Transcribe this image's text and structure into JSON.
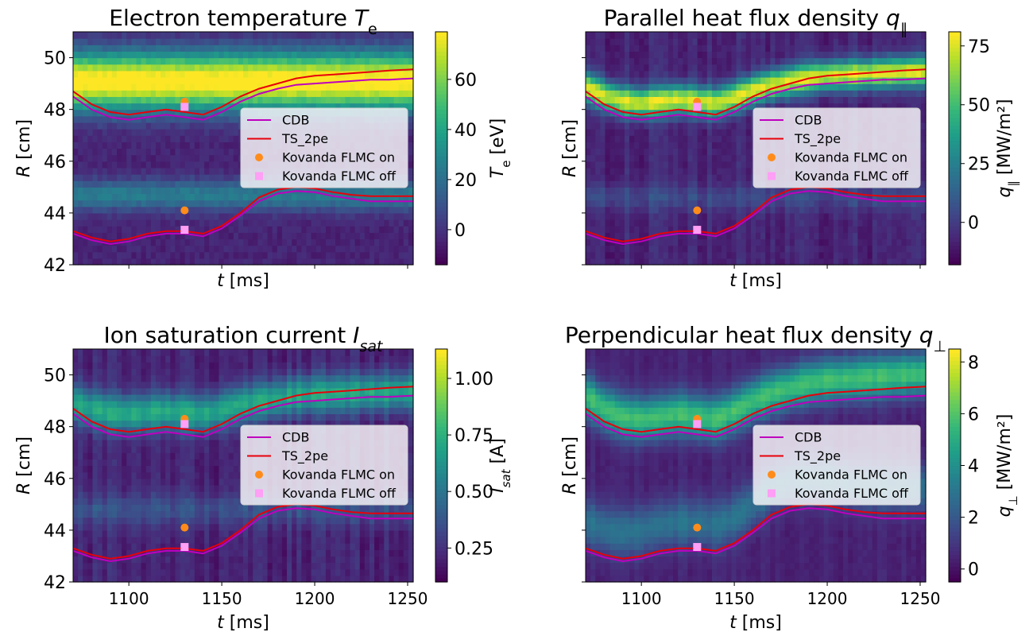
{
  "chart_data": [
    {
      "type": "heatmap",
      "title": "Electron temperature T",
      "title_sub": "e",
      "xlabel": "t",
      "xlabel_unit": "[ms]",
      "ylabel": "R",
      "ylabel_unit": "[cm]",
      "xlim": [
        1070,
        1253
      ],
      "ylim": [
        42,
        51
      ],
      "xticks": [
        1100,
        1150,
        1200,
        1250
      ],
      "xtick_labels": [],
      "yticks": [
        42,
        44,
        46,
        48,
        50
      ],
      "ytick_labels": [
        "42",
        "44",
        "46",
        "48",
        "50"
      ],
      "colorbar": {
        "label": "T",
        "label_sub": "e",
        "label_unit": "[eV]",
        "min": -14,
        "max": 79,
        "ticks": [
          0,
          20,
          40,
          60
        ],
        "tick_labels": [
          "0",
          "20",
          "40",
          "60"
        ]
      },
      "field": {
        "bands": [
          {
            "c": 49.1,
            "w": 1.1,
            "a": 0.95
          },
          {
            "c": 44.7,
            "w": 0.6,
            "a": 0.32
          }
        ],
        "noise": 0.07,
        "tw": 0
      },
      "legend_location": "center-right",
      "series": [
        {
          "name": "CDB",
          "color": "#bf00bf",
          "kind": "line"
        },
        {
          "name": "TS_2pe",
          "color": "#e8000b",
          "kind": "line"
        },
        {
          "name": "Kovanda FLMC on",
          "color": "#ff8c1a",
          "kind": "marker-circle",
          "points": [
            [
              1130,
              48.3
            ],
            [
              1130,
              44.1
            ]
          ]
        },
        {
          "name": "Kovanda FLMC off",
          "color": "#ff9ff5",
          "kind": "marker-square",
          "points": [
            [
              1130,
              48.1
            ],
            [
              1130,
              43.35
            ]
          ]
        }
      ],
      "legend": [
        "CDB",
        "TS_2pe",
        "Kovanda FLMC on",
        "Kovanda FLMC off"
      ]
    },
    {
      "type": "heatmap",
      "title": "Parallel heat flux density q",
      "title_sub": "∥",
      "xlabel": "t",
      "xlabel_unit": "[ms]",
      "ylabel": "R",
      "ylabel_unit": "[cm]",
      "xlim": [
        1070,
        1253
      ],
      "ylim": [
        42,
        51
      ],
      "xticks": [
        1100,
        1150,
        1200,
        1250
      ],
      "xtick_labels": [],
      "yticks": [
        42,
        44,
        46,
        48,
        50
      ],
      "ytick_labels": [],
      "colorbar": {
        "label": "q",
        "label_sub": "∥",
        "label_unit": "[MW/m²]",
        "min": -18,
        "max": 81,
        "ticks": [
          0,
          25,
          50,
          75
        ],
        "tick_labels": [
          "0",
          "25",
          "50",
          "75"
        ]
      },
      "field": {
        "bands": [
          {
            "c": 48.4,
            "w": 0.55,
            "a": 0.85,
            "follow": 0.7
          },
          {
            "c": 44.6,
            "w": 0.5,
            "a": 0.12
          }
        ],
        "noise": 0.05,
        "tw": 0.1
      },
      "legend_location": "center-right",
      "series": [
        {
          "name": "CDB",
          "color": "#bf00bf",
          "kind": "line"
        },
        {
          "name": "TS_2pe",
          "color": "#e8000b",
          "kind": "line"
        },
        {
          "name": "Kovanda FLMC on",
          "color": "#ff8c1a",
          "kind": "marker-circle",
          "points": [
            [
              1130,
              48.3
            ],
            [
              1130,
              44.1
            ]
          ]
        },
        {
          "name": "Kovanda FLMC off",
          "color": "#ff9ff5",
          "kind": "marker-square",
          "points": [
            [
              1130,
              48.1
            ],
            [
              1130,
              43.35
            ]
          ]
        }
      ],
      "legend": [
        "CDB",
        "TS_2pe",
        "Kovanda FLMC on",
        "Kovanda FLMC off"
      ]
    },
    {
      "type": "heatmap",
      "title": "Ion saturation current I",
      "title_sub": "sat",
      "xlabel": "t",
      "xlabel_unit": "[ms]",
      "ylabel": "R",
      "ylabel_unit": "[cm]",
      "xlim": [
        1070,
        1253
      ],
      "ylim": [
        42,
        51
      ],
      "xticks": [
        1100,
        1150,
        1200,
        1250
      ],
      "xtick_labels": [
        "1100",
        "1150",
        "1200",
        "1250"
      ],
      "yticks": [
        42,
        44,
        46,
        48,
        50
      ],
      "ytick_labels": [
        "42",
        "44",
        "46",
        "48",
        "50"
      ],
      "colorbar": {
        "label": "I",
        "label_sub": "sat",
        "label_unit": "[A]",
        "min": 0.1,
        "max": 1.13,
        "ticks": [
          0.25,
          0.5,
          0.75,
          1.0
        ],
        "tick_labels": [
          "0.25",
          "0.50",
          "0.75",
          "1.00"
        ]
      },
      "field": {
        "bands": [
          {
            "c": 48.6,
            "w": 0.7,
            "a": 0.5,
            "follow": 0.5
          },
          {
            "c": 44.8,
            "w": 0.6,
            "a": 0.15
          }
        ],
        "noise": 0.05,
        "tw": 0.1
      },
      "legend_location": "center-right",
      "series": [
        {
          "name": "CDB",
          "color": "#bf00bf",
          "kind": "line"
        },
        {
          "name": "TS_2pe",
          "color": "#e8000b",
          "kind": "line"
        },
        {
          "name": "Kovanda FLMC on",
          "color": "#ff8c1a",
          "kind": "marker-circle",
          "points": [
            [
              1130,
              48.3
            ],
            [
              1130,
              44.1
            ]
          ]
        },
        {
          "name": "Kovanda FLMC off",
          "color": "#ff9ff5",
          "kind": "marker-square",
          "points": [
            [
              1130,
              48.1
            ],
            [
              1130,
              43.35
            ]
          ]
        }
      ],
      "legend": [
        "CDB",
        "TS_2pe",
        "Kovanda FLMC on",
        "Kovanda FLMC off"
      ]
    },
    {
      "type": "heatmap",
      "title": "Perpendicular heat flux density q",
      "title_sub": "⊥",
      "xlabel": "t",
      "xlabel_unit": "[ms]",
      "ylabel": "R",
      "ylabel_unit": "[cm]",
      "xlim": [
        1070,
        1253
      ],
      "ylim": [
        42,
        51
      ],
      "xticks": [
        1100,
        1150,
        1200,
        1250
      ],
      "xtick_labels": [
        "1100",
        "1150",
        "1200",
        "1250"
      ],
      "yticks": [
        42,
        44,
        46,
        48,
        50
      ],
      "ytick_labels": [],
      "colorbar": {
        "label": "q",
        "label_sub": "⊥",
        "label_unit": "[MW/m²]",
        "min": -0.5,
        "max": 8.5,
        "ticks": [
          0,
          2,
          4,
          6,
          8
        ],
        "tick_labels": [
          "0",
          "2",
          "4",
          "6",
          "8"
        ]
      },
      "field": {
        "bands": [
          {
            "c": 48.5,
            "w": 0.8,
            "a": 0.6,
            "follow": 1.0
          },
          {
            "c": 44.3,
            "w": 0.9,
            "a": 0.28,
            "follow": 1.0
          }
        ],
        "noise": 0.03,
        "tw": 0.05
      },
      "legend_location": "center-right",
      "series": [
        {
          "name": "CDB",
          "color": "#bf00bf",
          "kind": "line"
        },
        {
          "name": "TS_2pe",
          "color": "#e8000b",
          "kind": "line"
        },
        {
          "name": "Kovanda FLMC on",
          "color": "#ff8c1a",
          "kind": "marker-circle",
          "points": [
            [
              1130,
              48.3
            ],
            [
              1130,
              44.1
            ]
          ]
        },
        {
          "name": "Kovanda FLMC off",
          "color": "#ff9ff5",
          "kind": "marker-square",
          "points": [
            [
              1130,
              48.1
            ],
            [
              1130,
              43.35
            ]
          ]
        }
      ],
      "legend": [
        "CDB",
        "TS_2pe",
        "Kovanda FLMC on",
        "Kovanda FLMC off"
      ]
    }
  ],
  "separatrix": {
    "t": [
      1070,
      1080,
      1090,
      1100,
      1110,
      1120,
      1130,
      1140,
      1150,
      1160,
      1170,
      1180,
      1190,
      1200,
      1210,
      1220,
      1230,
      1240,
      1253
    ],
    "ts_2pe_upper": [
      48.7,
      48.2,
      47.9,
      47.8,
      47.9,
      48.0,
      47.9,
      47.8,
      48.1,
      48.5,
      48.8,
      49.0,
      49.2,
      49.3,
      49.35,
      49.4,
      49.45,
      49.5,
      49.55
    ],
    "cdb_upper": [
      48.5,
      48.0,
      47.7,
      47.6,
      47.7,
      47.8,
      47.7,
      47.6,
      47.9,
      48.3,
      48.6,
      48.8,
      48.95,
      49.0,
      49.05,
      49.1,
      49.15,
      49.15,
      49.2
    ],
    "ts_2pe_lower": [
      43.3,
      43.05,
      42.9,
      43.0,
      43.2,
      43.3,
      43.3,
      43.2,
      43.5,
      44.0,
      44.6,
      44.9,
      45.0,
      44.95,
      44.8,
      44.7,
      44.65,
      44.65,
      44.65
    ],
    "cdb_lower": [
      43.2,
      42.95,
      42.8,
      42.9,
      43.1,
      43.2,
      43.2,
      43.1,
      43.4,
      43.9,
      44.45,
      44.75,
      44.85,
      44.8,
      44.65,
      44.55,
      44.45,
      44.45,
      44.45
    ]
  },
  "colormap": "viridis"
}
